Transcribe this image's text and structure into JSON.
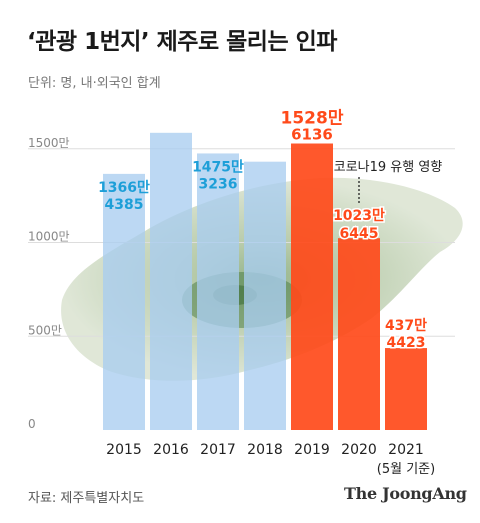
{
  "title": "‘관광 1번지’ 제주로 몰리는 인파",
  "unit_label": "단위: 명, 내·외국인 합계",
  "source": "자료: 제주특별자치도",
  "brand": "The JoongAng",
  "colors": {
    "pre_covid_bar": "#a9cdef",
    "pre_covid_text": "#1e9fd8",
    "covid_bar": "#ff4a1a",
    "covid_text": "#ff4a1a",
    "axis_text": "#888888",
    "grid": "#dddddd"
  },
  "chart_data": {
    "type": "bar",
    "title": "‘관광 1번지’ 제주로 몰리는 인파",
    "ylabel": "",
    "xlabel": "",
    "ylim": [
      0,
      1600
    ],
    "y_ticks": [
      "0",
      "500만",
      "1000만",
      "1500만"
    ],
    "y_tick_values": [
      0,
      500,
      1000,
      1500
    ],
    "categories": [
      "2015",
      "2016",
      "2017",
      "2018",
      "2019",
      "2020",
      "2021"
    ],
    "category_sublabels": [
      "",
      "",
      "",
      "",
      "",
      "",
      "(5월 기준)"
    ],
    "values": [
      1366,
      1585,
      1475,
      1431,
      1528,
      1023,
      437
    ],
    "highlighted": [
      false,
      false,
      false,
      false,
      true,
      true,
      true
    ],
    "data_labels": [
      {
        "category": "2015",
        "primary": "1366만",
        "secondary": "4385"
      },
      {
        "category": "2016",
        "primary": "",
        "secondary": ""
      },
      {
        "category": "2017",
        "primary": "1475만",
        "secondary": "3236"
      },
      {
        "category": "2018",
        "primary": "",
        "secondary": ""
      },
      {
        "category": "2019",
        "primary": "1528만",
        "secondary": "6136"
      },
      {
        "category": "2020",
        "primary": "1023만",
        "secondary": "6445"
      },
      {
        "category": "2021",
        "primary": "437만",
        "secondary": "4423"
      }
    ],
    "annotation": {
      "text": "코로나19 유행 영향",
      "category": "2020"
    },
    "grid": true,
    "legend": "none"
  }
}
